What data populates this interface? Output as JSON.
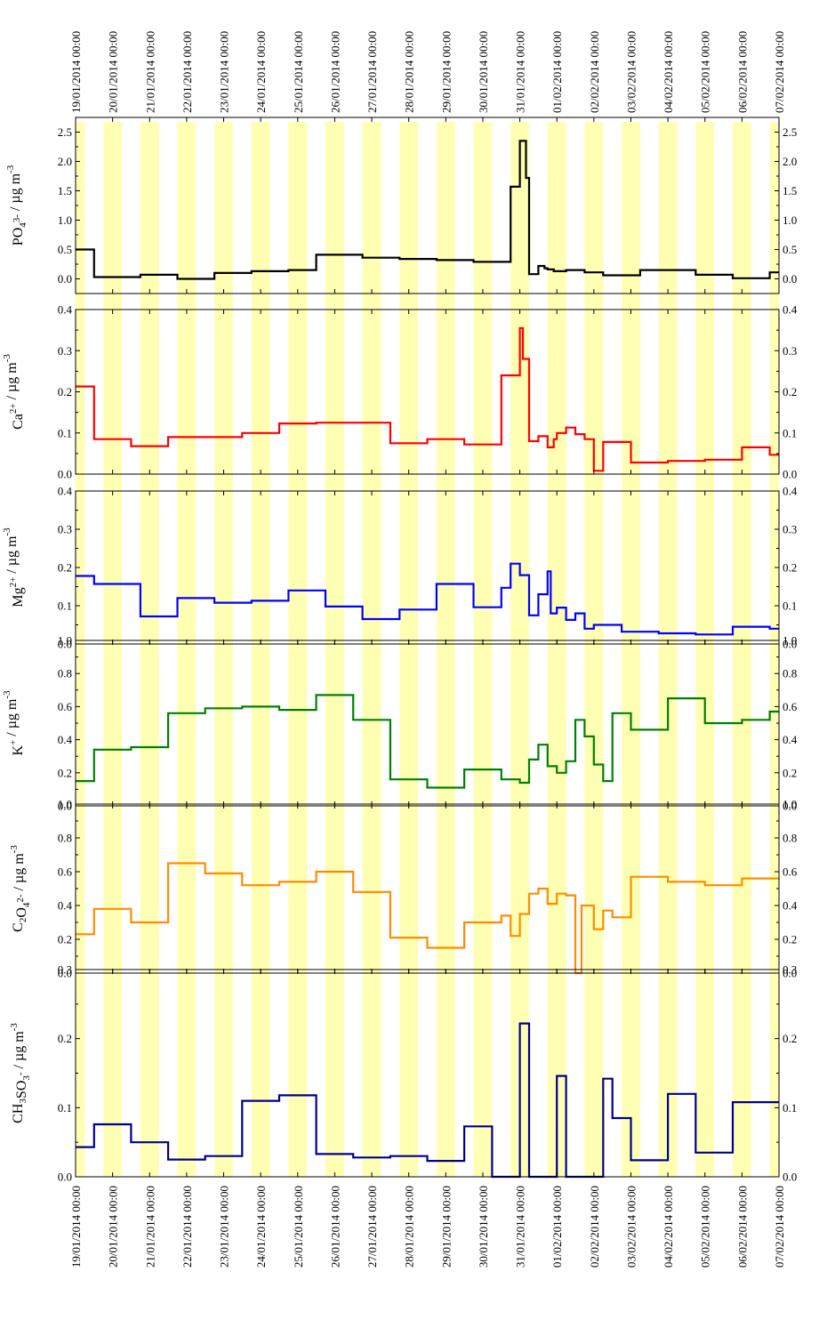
{
  "dates": [
    "19/01/2014 00:00",
    "20/01/2014 00:00",
    "21/01/2014 00:00",
    "22/01/2014 00:00",
    "23/01/2014 00:00",
    "24/01/2014 00:00",
    "25/01/2014 00:00",
    "26/01/2014 00:00",
    "27/01/2014 00:00",
    "28/01/2014 00:00",
    "29/01/2014 00:00",
    "30/01/2014 00:00",
    "31/01/2014 00:00",
    "01/02/2014 00:00",
    "02/02/2014 00:00",
    "03/02/2014 00:00",
    "04/02/2014 00:00",
    "05/02/2014 00:00",
    "06/02/2014 00:00",
    "07/02/2014 00:00"
  ],
  "shading": {
    "color": "#ffffb4",
    "note": "night-time periods shaded yellow"
  },
  "chart_data": [
    {
      "type": "line",
      "step": true,
      "ylabel": {
        "base": "PO",
        "sub": "4",
        "sup": "3-",
        "units": " / µg m",
        "units_sup": "-3"
      },
      "color": "#000000",
      "ylim": [
        -0.25,
        2.75
      ],
      "ticks": [
        {
          "v": 0.0,
          "label": "0.0"
        },
        {
          "v": 0.5,
          "label": "0.5"
        },
        {
          "v": 1.0,
          "label": "1.0"
        },
        {
          "v": 1.5,
          "label": "1.5"
        },
        {
          "v": 2.0,
          "label": "2.0"
        },
        {
          "v": 2.5,
          "label": "2.5"
        }
      ],
      "x": [
        "19/01/2014 00:00",
        "19/01/2014 12:00",
        "20/01/2014 18:00",
        "21/01/2014 18:00",
        "22/01/2014 18:00",
        "23/01/2014 18:00",
        "24/01/2014 18:00",
        "25/01/2014 12:00",
        "26/01/2014 18:00",
        "27/01/2014 18:00",
        "28/01/2014 18:00",
        "29/01/2014 18:00",
        "30/01/2014 06:00",
        "30/01/2014 18:00",
        "31/01/2014 00:00",
        "31/01/2014 04:00",
        "31/01/2014 06:00",
        "31/01/2014 12:00",
        "31/01/2014 16:00",
        "31/01/2014 18:00",
        "31/01/2014 22:00",
        "01/02/2014 06:00",
        "01/02/2014 18:00",
        "02/02/2014 06:00",
        "03/02/2014 06:00",
        "03/02/2014 18:00",
        "04/02/2014 18:00",
        "05/02/2014 18:00",
        "06/02/2014 18:00",
        "07/02/2014 00:00"
      ],
      "y": [
        0.5,
        0.03,
        0.07,
        0.0,
        0.1,
        0.13,
        0.15,
        0.41,
        0.36,
        0.34,
        0.32,
        0.29,
        0.29,
        1.57,
        2.35,
        1.72,
        0.08,
        0.22,
        0.18,
        0.16,
        0.13,
        0.15,
        0.11,
        0.06,
        0.15,
        0.15,
        0.07,
        0.01,
        0.11,
        0.11
      ]
    },
    {
      "type": "line",
      "step": true,
      "ylabel": {
        "base": "Ca",
        "sub": "",
        "sup": "2+",
        "units": " / µg m",
        "units_sup": "-3"
      },
      "color": "#ff0000",
      "ylim": [
        0,
        0.4
      ],
      "ticks": [
        {
          "v": 0.0,
          "label": "0.0"
        },
        {
          "v": 0.1,
          "label": "0.1"
        },
        {
          "v": 0.2,
          "label": "0.2"
        },
        {
          "v": 0.3,
          "label": "0.3"
        },
        {
          "v": 0.4,
          "label": "0.4"
        }
      ],
      "x": [
        "19/01/2014 00:00",
        "19/01/2014 12:00",
        "20/01/2014 12:00",
        "21/01/2014 12:00",
        "23/01/2014 12:00",
        "24/01/2014 12:00",
        "25/01/2014 12:00",
        "27/01/2014 12:00",
        "28/01/2014 12:00",
        "29/01/2014 12:00",
        "30/01/2014 12:00",
        "31/01/2014 00:00",
        "31/01/2014 02:00",
        "31/01/2014 06:00",
        "31/01/2014 12:00",
        "31/01/2014 18:00",
        "31/01/2014 22:00",
        "01/02/2014 00:00",
        "01/02/2014 06:00",
        "01/02/2014 12:00",
        "01/02/2014 18:00",
        "02/02/2014 00:00",
        "02/02/2014 06:00",
        "03/02/2014 00:00",
        "04/02/2014 00:00",
        "05/02/2014 00:00",
        "06/02/2014 00:00",
        "06/02/2014 18:00",
        "07/02/2014 00:00"
      ],
      "y": [
        0.213,
        0.085,
        0.068,
        0.09,
        0.1,
        0.123,
        0.125,
        0.075,
        0.085,
        0.072,
        0.24,
        0.355,
        0.28,
        0.08,
        0.092,
        0.065,
        0.085,
        0.1,
        0.113,
        0.097,
        0.085,
        0.008,
        0.078,
        0.028,
        0.032,
        0.035,
        0.065,
        0.047,
        0.047
      ]
    },
    {
      "type": "line",
      "step": true,
      "ylabel": {
        "base": "Mg",
        "sub": "",
        "sup": "2+",
        "units": " / µg m",
        "units_sup": "-3"
      },
      "color": "#0000ff",
      "ylim": [
        0,
        0.4
      ],
      "ticks": [
        {
          "v": 0.0,
          "label": "0.0"
        },
        {
          "v": 0.1,
          "label": "0.1"
        },
        {
          "v": 0.2,
          "label": "0.2"
        },
        {
          "v": 0.3,
          "label": "0.3"
        },
        {
          "v": 0.4,
          "label": "0.4"
        }
      ],
      "x": [
        "19/01/2014 00:00",
        "19/01/2014 12:00",
        "20/01/2014 18:00",
        "21/01/2014 18:00",
        "22/01/2014 18:00",
        "23/01/2014 18:00",
        "24/01/2014 18:00",
        "25/01/2014 18:00",
        "26/01/2014 18:00",
        "27/01/2014 18:00",
        "28/01/2014 18:00",
        "29/01/2014 18:00",
        "30/01/2014 06:00",
        "30/01/2014 12:00",
        "30/01/2014 18:00",
        "31/01/2014 00:00",
        "31/01/2014 06:00",
        "31/01/2014 12:00",
        "31/01/2014 18:00",
        "31/01/2014 20:00",
        "01/02/2014 00:00",
        "01/02/2014 06:00",
        "01/02/2014 12:00",
        "01/02/2014 18:00",
        "02/02/2014 00:00",
        "02/02/2014 06:00",
        "02/02/2014 18:00",
        "03/02/2014 18:00",
        "04/02/2014 18:00",
        "05/02/2014 18:00",
        "06/02/2014 18:00",
        "07/02/2014 00:00"
      ],
      "y": [
        0.178,
        0.157,
        0.072,
        0.12,
        0.108,
        0.113,
        0.14,
        0.098,
        0.065,
        0.09,
        0.157,
        0.096,
        0.096,
        0.147,
        0.21,
        0.18,
        0.075,
        0.13,
        0.19,
        0.08,
        0.095,
        0.063,
        0.08,
        0.04,
        0.05,
        0.05,
        0.032,
        0.028,
        0.025,
        0.045,
        0.04,
        0.04
      ]
    },
    {
      "type": "line",
      "step": true,
      "ylabel": {
        "base": "K",
        "sub": "",
        "sup": "+",
        "units": " / µg m",
        "units_sup": "-3"
      },
      "color": "#008000",
      "ylim": [
        0,
        1.0
      ],
      "ticks": [
        {
          "v": 0.0,
          "label": "0.0"
        },
        {
          "v": 0.2,
          "label": "0.2"
        },
        {
          "v": 0.4,
          "label": "0.4"
        },
        {
          "v": 0.6,
          "label": "0.6"
        },
        {
          "v": 0.8,
          "label": "0.8"
        },
        {
          "v": 1.0,
          "label": "1.0"
        }
      ],
      "x": [
        "19/01/2014 00:00",
        "19/01/2014 12:00",
        "20/01/2014 12:00",
        "21/01/2014 12:00",
        "22/01/2014 12:00",
        "23/01/2014 12:00",
        "24/01/2014 12:00",
        "25/01/2014 12:00",
        "26/01/2014 12:00",
        "27/01/2014 12:00",
        "28/01/2014 12:00",
        "29/01/2014 12:00",
        "30/01/2014 12:00",
        "31/01/2014 00:00",
        "31/01/2014 06:00",
        "31/01/2014 12:00",
        "31/01/2014 18:00",
        "01/02/2014 00:00",
        "01/02/2014 06:00",
        "01/02/2014 12:00",
        "01/02/2014 18:00",
        "02/02/2014 00:00",
        "02/02/2014 06:00",
        "02/02/2014 12:00",
        "03/02/2014 00:00",
        "04/02/2014 00:00",
        "05/02/2014 00:00",
        "06/02/2014 00:00",
        "06/02/2014 18:00",
        "07/02/2014 00:00"
      ],
      "y": [
        0.15,
        0.34,
        0.355,
        0.56,
        0.59,
        0.6,
        0.58,
        0.67,
        0.52,
        0.16,
        0.11,
        0.22,
        0.16,
        0.14,
        0.28,
        0.37,
        0.24,
        0.2,
        0.27,
        0.52,
        0.42,
        0.25,
        0.15,
        0.56,
        0.46,
        0.65,
        0.5,
        0.52,
        0.57,
        0.57
      ]
    },
    {
      "type": "line",
      "step": true,
      "ylabel": {
        "base": "C",
        "sub": "2",
        "base2": "O",
        "sub2": "4",
        "sup": "2-",
        "units": " / µg m",
        "units_sup": "-3"
      },
      "color": "#ff8c00",
      "ylim": [
        0,
        1.0
      ],
      "ticks": [
        {
          "v": 0.0,
          "label": "0.0"
        },
        {
          "v": 0.2,
          "label": "0.2"
        },
        {
          "v": 0.4,
          "label": "0.4"
        },
        {
          "v": 0.6,
          "label": "0.6"
        },
        {
          "v": 0.8,
          "label": "0.8"
        },
        {
          "v": 1.0,
          "label": "1.0"
        }
      ],
      "x": [
        "19/01/2014 00:00",
        "19/01/2014 12:00",
        "20/01/2014 12:00",
        "21/01/2014 12:00",
        "22/01/2014 12:00",
        "23/01/2014 12:00",
        "24/01/2014 12:00",
        "25/01/2014 12:00",
        "26/01/2014 12:00",
        "27/01/2014 12:00",
        "28/01/2014 12:00",
        "29/01/2014 12:00",
        "30/01/2014 12:00",
        "30/01/2014 18:00",
        "31/01/2014 00:00",
        "31/01/2014 06:00",
        "31/01/2014 12:00",
        "31/01/2014 18:00",
        "01/02/2014 00:00",
        "01/02/2014 06:00",
        "01/02/2014 12:00",
        "01/02/2014 16:00",
        "02/02/2014 00:00",
        "02/02/2014 06:00",
        "02/02/2014 12:00",
        "03/02/2014 00:00",
        "04/02/2014 00:00",
        "05/02/2014 00:00",
        "06/02/2014 00:00",
        "06/02/2014 18:00",
        "07/02/2014 00:00"
      ],
      "y": [
        0.23,
        0.38,
        0.3,
        0.65,
        0.59,
        0.52,
        0.54,
        0.6,
        0.48,
        0.21,
        0.15,
        0.3,
        0.34,
        0.22,
        0.35,
        0.47,
        0.5,
        0.41,
        0.47,
        0.46,
        0.0,
        0.4,
        0.26,
        0.37,
        0.33,
        0.57,
        0.54,
        0.52,
        0.56,
        0.56,
        0.56
      ]
    },
    {
      "type": "line",
      "step": true,
      "ylabel": {
        "base": "CH",
        "sub": "3",
        "base2": "SO",
        "sub2": "3",
        "sup": "-",
        "units": " / µg m",
        "units_sup": "-3"
      },
      "color": "#00008b",
      "ylim": [
        0,
        0.3
      ],
      "ticks": [
        {
          "v": 0.0,
          "label": "0.0"
        },
        {
          "v": 0.1,
          "label": "0.1"
        },
        {
          "v": 0.2,
          "label": "0.2"
        },
        {
          "v": 0.3,
          "label": "0.3"
        }
      ],
      "x": [
        "19/01/2014 00:00",
        "19/01/2014 12:00",
        "20/01/2014 12:00",
        "21/01/2014 12:00",
        "22/01/2014 12:00",
        "23/01/2014 12:00",
        "24/01/2014 12:00",
        "25/01/2014 12:00",
        "26/01/2014 12:00",
        "27/01/2014 12:00",
        "28/01/2014 12:00",
        "29/01/2014 12:00",
        "30/01/2014 06:00",
        "30/01/2014 18:00",
        "31/01/2014 00:00",
        "31/01/2014 06:00",
        "31/01/2014 12:00",
        "31/01/2014 18:00",
        "01/02/2014 00:00",
        "01/02/2014 06:00",
        "01/02/2014 12:00",
        "01/02/2014 18:00",
        "02/02/2014 00:00",
        "02/02/2014 06:00",
        "02/02/2014 12:00",
        "03/02/2014 00:00",
        "04/02/2014 00:00",
        "04/02/2014 18:00",
        "05/02/2014 18:00",
        "06/02/2014 18:00",
        "07/02/2014 00:00"
      ],
      "y": [
        0.043,
        0.076,
        0.05,
        0.025,
        0.03,
        0.11,
        0.118,
        0.033,
        0.028,
        0.03,
        0.023,
        0.073,
        0.0,
        0.0,
        0.222,
        0.0,
        0.0,
        0.0,
        0.146,
        0.0,
        0.0,
        0.0,
        0.0,
        0.142,
        0.085,
        0.024,
        0.12,
        0.035,
        0.108,
        0.108,
        0.108
      ]
    }
  ]
}
